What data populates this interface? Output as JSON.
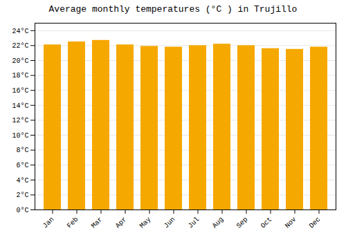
{
  "chart_data": {
    "type": "bar",
    "title": "Average monthly temperatures (°C ) in Trujillo",
    "categories": [
      "Jan",
      "Feb",
      "Mar",
      "Apr",
      "May",
      "Jun",
      "Jul",
      "Aug",
      "Sep",
      "Oct",
      "Nov",
      "Dec"
    ],
    "values": [
      22.1,
      22.5,
      22.7,
      22.1,
      21.9,
      21.8,
      22.0,
      22.2,
      22.0,
      21.6,
      21.5,
      21.8
    ],
    "color": "#F5A800",
    "ylim": [
      0,
      25
    ],
    "yticks": [
      {
        "value": 0,
        "label": "0°C"
      },
      {
        "value": 2,
        "label": "2°C"
      },
      {
        "value": 4,
        "label": "4°C"
      },
      {
        "value": 6,
        "label": "6°C"
      },
      {
        "value": 8,
        "label": "8°C"
      },
      {
        "value": 10,
        "label": "10°C"
      },
      {
        "value": 12,
        "label": "12°C"
      },
      {
        "value": 14,
        "label": "14°C"
      },
      {
        "value": 16,
        "label": "16°C"
      },
      {
        "value": 18,
        "label": "18°C"
      },
      {
        "value": 20,
        "label": "20°C"
      },
      {
        "value": 22,
        "label": "22°C"
      },
      {
        "value": 24,
        "label": "24°C"
      }
    ],
    "grid": true
  }
}
